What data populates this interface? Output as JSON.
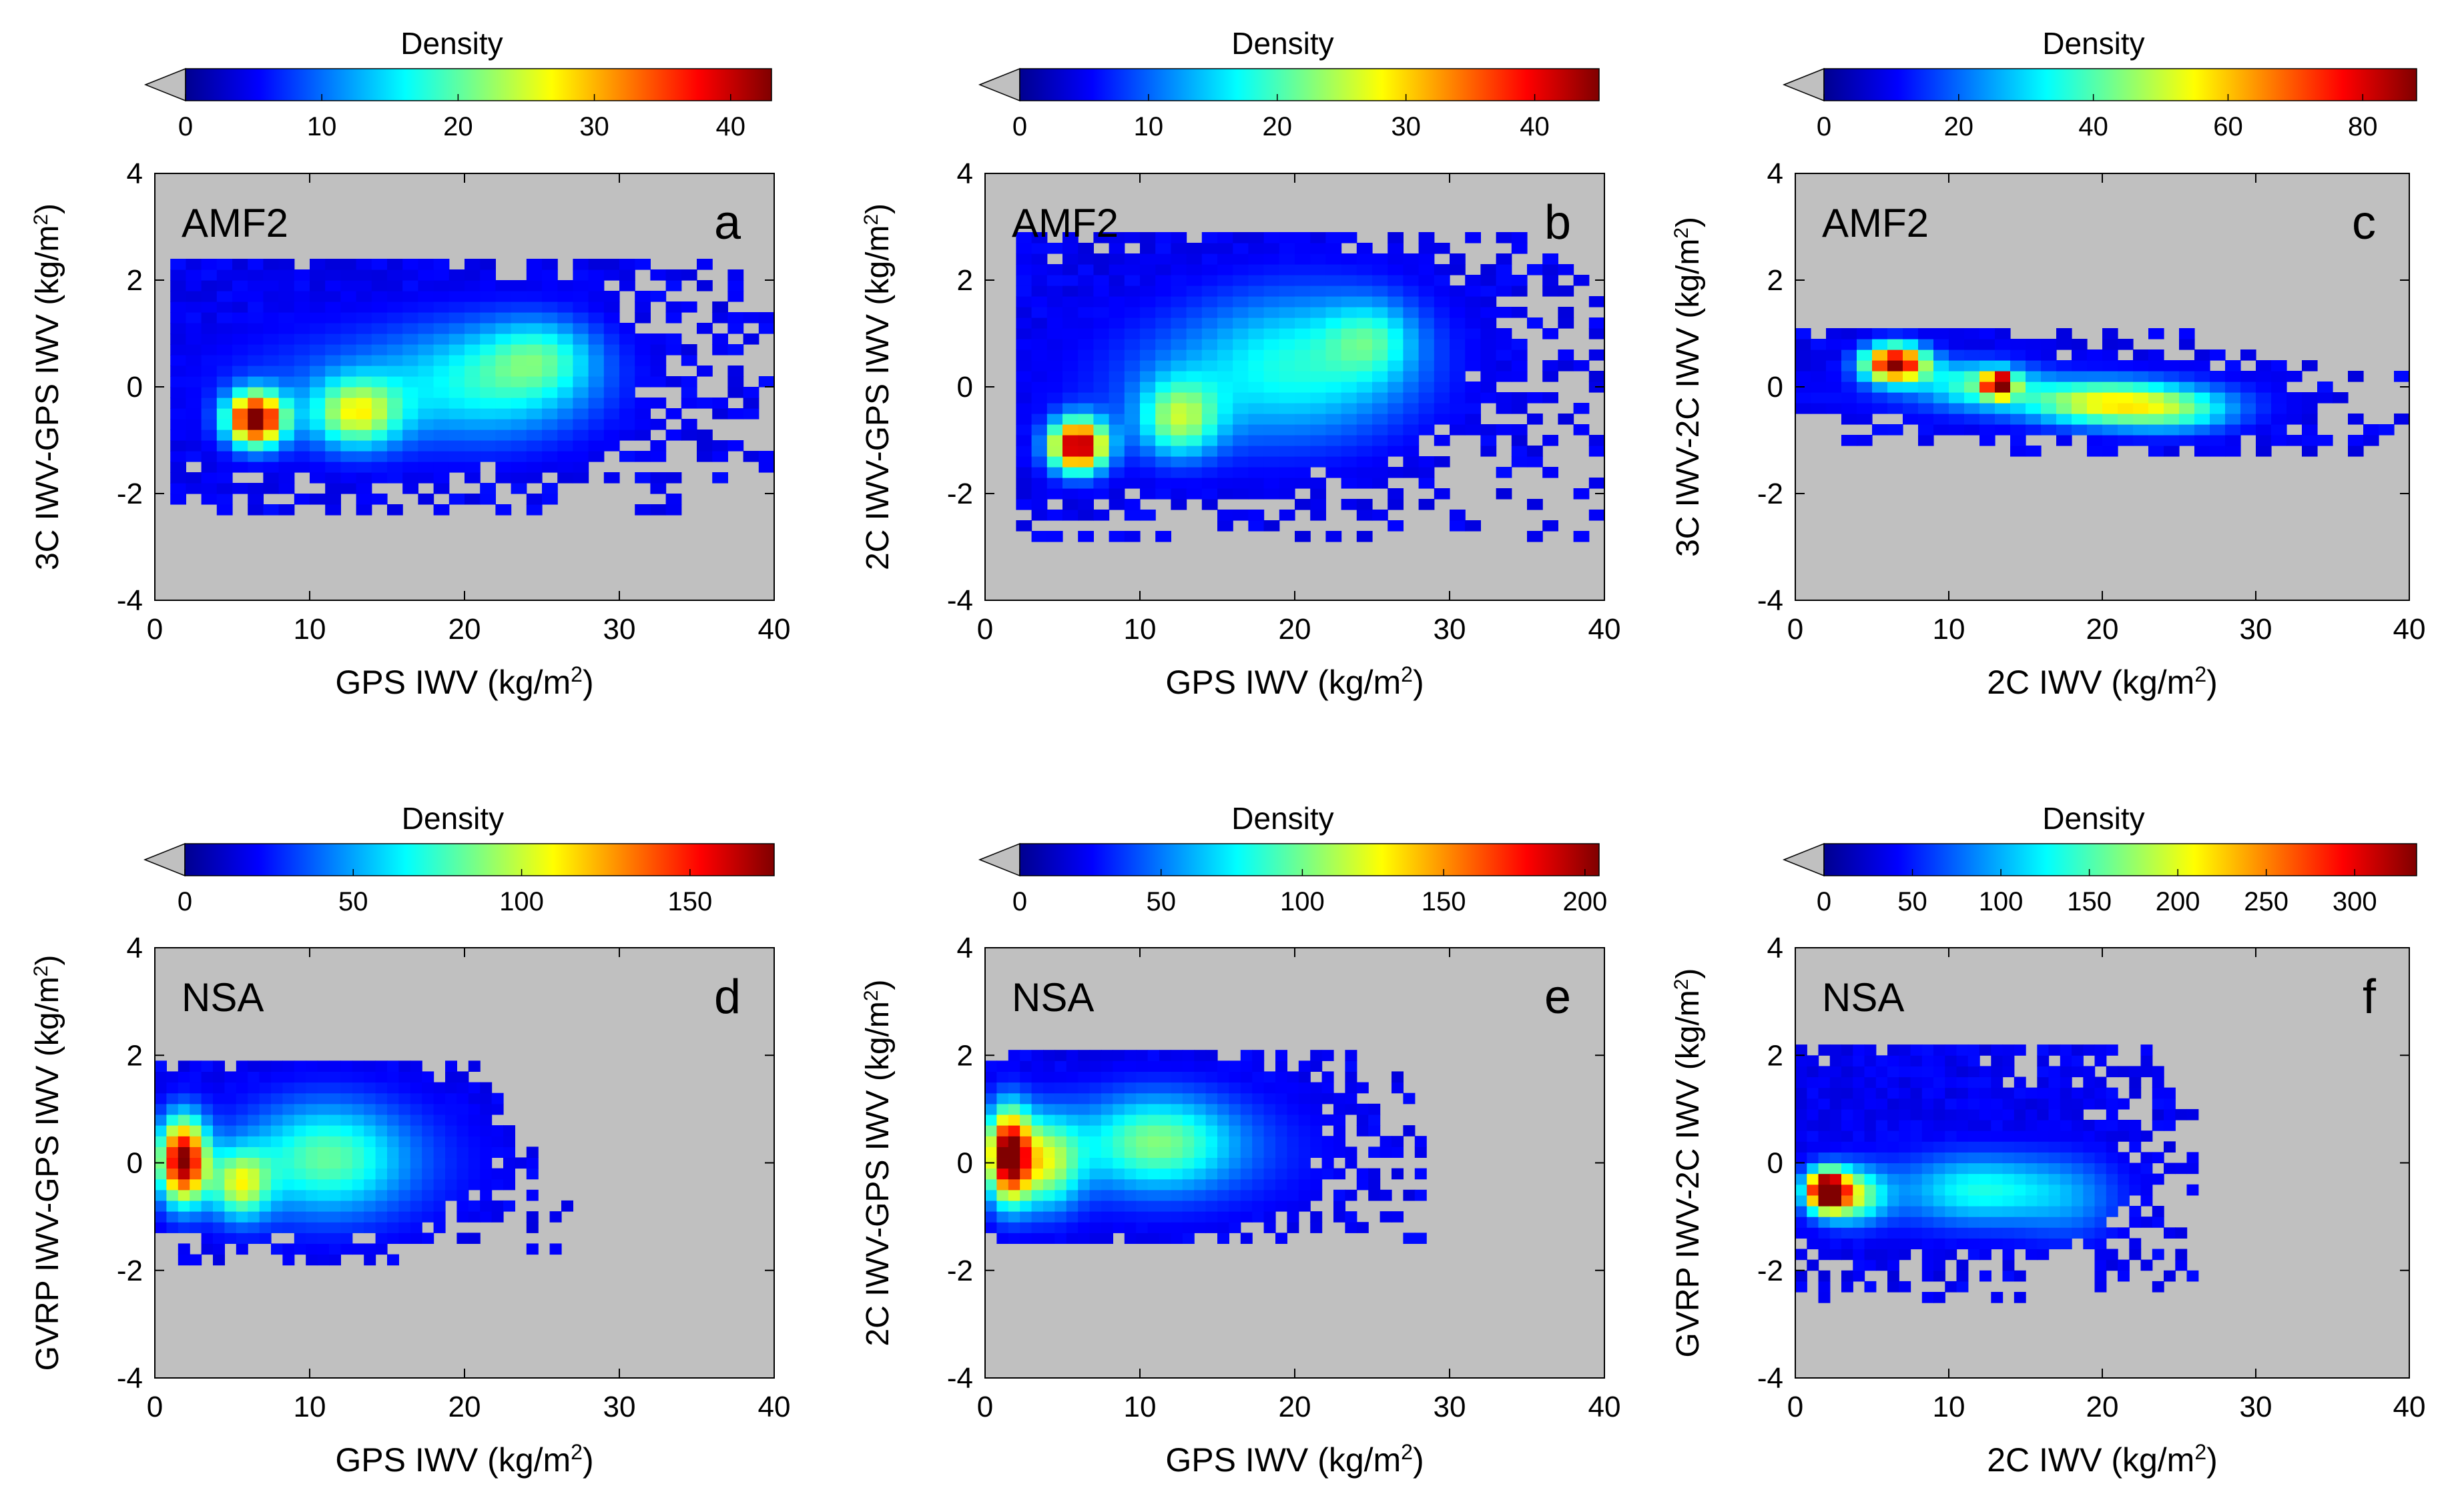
{
  "figure": {
    "panels": 6,
    "colormap": "jet",
    "background_color": "#c0c0c0",
    "colorbar_extension": "lower (gray triangle)"
  },
  "chart_data": [
    {
      "id": "a",
      "type": "heatmap",
      "site": "AMF2",
      "panel_letter": "a",
      "xlabel_main": "GPS IWV (kg/m",
      "ylabel_main": "3C IWV-GPS IWV (kg/m",
      "xlim": [
        0,
        40
      ],
      "ylim": [
        -4,
        4
      ],
      "xticks": [
        "0",
        "10",
        "20",
        "30",
        "40"
      ],
      "yticks": [
        "4",
        "2",
        "0",
        "-2",
        "-4"
      ],
      "colorbar": {
        "label": "Density",
        "min": 0,
        "max": 43,
        "ticks": [
          "0",
          "10",
          "20",
          "30",
          "40"
        ],
        "tick_values": [
          0,
          10,
          20,
          30,
          40
        ]
      },
      "bin_size": [
        1,
        0.2
      ],
      "grid": [
        30,
        10,
        20,
        0.6
      ],
      "blobs": [
        {
          "x": 6.5,
          "y": -0.6,
          "sx": 1.3,
          "sy": 0.35,
          "peak": 42
        },
        {
          "x": 13,
          "y": -0.5,
          "sx": 2.0,
          "sy": 0.45,
          "peak": 20
        },
        {
          "x": 22,
          "y": 0.1,
          "sx": 5.0,
          "sy": 0.8,
          "peak": 13
        },
        {
          "x": 25,
          "y": 0.6,
          "sx": 2.5,
          "sy": 0.5,
          "peak": 9
        },
        {
          "x": 12,
          "y": 0.0,
          "sx": 7,
          "sy": 0.9,
          "peak": 5
        }
      ],
      "hull": {
        "xmin": 1,
        "xmax": 40,
        "ymin": -2.4,
        "ymax": 2.3
      }
    },
    {
      "id": "b",
      "type": "heatmap",
      "site": "AMF2",
      "panel_letter": "b",
      "xlabel_main": "GPS IWV (kg/m",
      "ylabel_main": "2C IWV-GPS IWV (kg/m",
      "xlim": [
        0,
        40
      ],
      "ylim": [
        -4,
        4
      ],
      "xticks": [
        "0",
        "10",
        "20",
        "30",
        "40"
      ],
      "yticks": [
        "4",
        "2",
        "0",
        "-2",
        "-4"
      ],
      "colorbar": {
        "label": "Density",
        "min": 0,
        "max": 45,
        "ticks": [
          "0",
          "10",
          "20",
          "30",
          "40"
        ],
        "tick_values": [
          0,
          10,
          20,
          30,
          40
        ]
      },
      "bin_size": [
        1,
        0.2
      ],
      "grid": [
        31,
        11,
        21,
        0.6
      ],
      "blobs": [
        {
          "x": 6,
          "y": -1.1,
          "sx": 1.3,
          "sy": 0.35,
          "peak": 44
        },
        {
          "x": 12.5,
          "y": -0.6,
          "sx": 1.8,
          "sy": 0.5,
          "peak": 18
        },
        {
          "x": 21,
          "y": 0.5,
          "sx": 5.5,
          "sy": 1.0,
          "peak": 13
        },
        {
          "x": 25,
          "y": 0.9,
          "sx": 2.0,
          "sy": 0.5,
          "peak": 9
        },
        {
          "x": 14,
          "y": 0.0,
          "sx": 7,
          "sy": 1.0,
          "peak": 5
        }
      ],
      "hull": {
        "xmin": 2,
        "xmax": 40,
        "ymin": -2.9,
        "ymax": 2.8
      }
    },
    {
      "id": "c",
      "type": "heatmap",
      "site": "AMF2",
      "panel_letter": "c",
      "xlabel_main": "2C IWV (kg/m",
      "ylabel_main": "3C IWV-2C IWV (kg/m",
      "xlim": [
        0,
        40
      ],
      "ylim": [
        -4,
        4
      ],
      "xticks": [
        "0",
        "10",
        "20",
        "30",
        "40"
      ],
      "yticks": [
        "4",
        "2",
        "0",
        "-2",
        "-4"
      ],
      "colorbar": {
        "label": "Density",
        "min": 0,
        "max": 88,
        "ticks": [
          "0",
          "20",
          "40",
          "60",
          "80"
        ],
        "tick_values": [
          0,
          20,
          40,
          60,
          80
        ]
      },
      "bin_size": [
        1,
        0.2
      ],
      "grid": [
        32,
        12,
        22,
        0.45
      ],
      "blobs": [
        {
          "x": 6.5,
          "y": 0.45,
          "sx": 1.5,
          "sy": 0.25,
          "peak": 86
        },
        {
          "x": 13.3,
          "y": 0.05,
          "sx": 0.6,
          "sy": 0.15,
          "peak": 85
        },
        {
          "x": 12,
          "y": 0.1,
          "sx": 2.5,
          "sy": 0.3,
          "peak": 30
        },
        {
          "x": 20,
          "y": -0.3,
          "sx": 3.5,
          "sy": 0.3,
          "peak": 40
        },
        {
          "x": 25,
          "y": -0.45,
          "sx": 3,
          "sy": 0.3,
          "peak": 25
        },
        {
          "x": 16,
          "y": -0.2,
          "sx": 10,
          "sy": 0.35,
          "peak": 10
        }
      ],
      "hull": {
        "xmin": 0,
        "xmax": 40,
        "ymin": -1.3,
        "ymax": 1.0
      },
      "trend": {
        "slope": -0.035,
        "intercept": 0.55,
        "halfwidth": 0.75
      }
    },
    {
      "id": "d",
      "type": "heatmap",
      "site": "NSA",
      "panel_letter": "d",
      "xlabel_main": "GPS IWV (kg/m",
      "ylabel_main": "GVRP IWV-GPS IWV (kg/m",
      "xlim": [
        0,
        40
      ],
      "ylim": [
        -4,
        4
      ],
      "xticks": [
        "0",
        "10",
        "20",
        "30",
        "40"
      ],
      "yticks": [
        "4",
        "2",
        "0",
        "-2",
        "-4"
      ],
      "colorbar": {
        "label": "Density",
        "min": 0,
        "max": 175,
        "ticks": [
          "0",
          "50",
          "100",
          "150"
        ],
        "tick_values": [
          0,
          50,
          100,
          150
        ]
      },
      "bin_size": [
        0.75,
        0.2
      ],
      "grid": [
        18,
        9,
        14,
        0.5
      ],
      "blobs": [
        {
          "x": 1.8,
          "y": 0.05,
          "sx": 1.1,
          "sy": 0.55,
          "peak": 170
        },
        {
          "x": 5.5,
          "y": -0.4,
          "sx": 1.3,
          "sy": 0.45,
          "peak": 80
        },
        {
          "x": 11,
          "y": 0.1,
          "sx": 3.5,
          "sy": 0.7,
          "peak": 55
        },
        {
          "x": 12,
          "y": 0.0,
          "sx": 7,
          "sy": 1.0,
          "peak": 20
        }
      ],
      "hull": {
        "xmin": 0,
        "xmax": 27.5,
        "ymin": -1.9,
        "ymax": 1.8
      },
      "cutoff": [
        [
          0,
          1.8
        ],
        [
          21,
          1.8
        ],
        [
          27.5,
          -1.2
        ]
      ]
    },
    {
      "id": "e",
      "type": "heatmap",
      "site": "NSA",
      "panel_letter": "e",
      "xlabel_main": "GPS IWV (kg/m",
      "ylabel_main": "2C IWV-GPS IWV (kg/m",
      "xlim": [
        0,
        40
      ],
      "ylim": [
        -4,
        4
      ],
      "xticks": [
        "0",
        "10",
        "20",
        "30",
        "40"
      ],
      "yticks": [
        "4",
        "2",
        "0",
        "-2",
        "-4"
      ],
      "colorbar": {
        "label": "Density",
        "min": 0,
        "max": 205,
        "ticks": [
          "0",
          "50",
          "100",
          "150",
          "200"
        ],
        "tick_values": [
          0,
          50,
          100,
          150,
          200
        ]
      },
      "bin_size": [
        0.75,
        0.2
      ],
      "grid": [
        19,
        8,
        15,
        0.5
      ],
      "blobs": [
        {
          "x": 1.5,
          "y": 0.15,
          "sx": 1.0,
          "sy": 0.6,
          "peak": 200
        },
        {
          "x": 4,
          "y": 0.0,
          "sx": 1.5,
          "sy": 0.6,
          "peak": 90
        },
        {
          "x": 11,
          "y": 0.4,
          "sx": 3.5,
          "sy": 0.6,
          "peak": 70
        },
        {
          "x": 12,
          "y": 0.2,
          "sx": 7.5,
          "sy": 0.9,
          "peak": 25
        }
      ],
      "hull": {
        "xmin": 0,
        "xmax": 28,
        "ymin": -1.5,
        "ymax": 1.9
      }
    },
    {
      "id": "f",
      "type": "heatmap",
      "site": "NSA",
      "panel_letter": "f",
      "xlabel_main": "2C IWV (kg/m",
      "ylabel_main": "GVRP IWV-2C IWV (kg/m",
      "xlim": [
        0,
        40
      ],
      "ylim": [
        -4,
        4
      ],
      "xticks": [
        "0",
        "10",
        "20",
        "30",
        "40"
      ],
      "yticks": [
        "4",
        "2",
        "0",
        "-2",
        "-4"
      ],
      "colorbar": {
        "label": "Density",
        "min": 0,
        "max": 335,
        "ticks": [
          "0",
          "50",
          "100",
          "150",
          "200",
          "250",
          "300"
        ],
        "tick_values": [
          0,
          50,
          100,
          150,
          200,
          250,
          300
        ]
      },
      "bin_size": [
        0.75,
        0.2
      ],
      "grid": [
        21,
        7,
        17,
        0.45
      ],
      "blobs": [
        {
          "x": 2,
          "y": -0.5,
          "sx": 0.9,
          "sy": 0.25,
          "peak": 330
        },
        {
          "x": 3.5,
          "y": -0.6,
          "sx": 1.6,
          "sy": 0.35,
          "peak": 160
        },
        {
          "x": 12,
          "y": -0.5,
          "sx": 3.5,
          "sy": 0.45,
          "peak": 90
        },
        {
          "x": 18,
          "y": -0.7,
          "sx": 2.5,
          "sy": 0.6,
          "peak": 45
        },
        {
          "x": 10,
          "y": -0.5,
          "sx": 8,
          "sy": 0.7,
          "peak": 25
        }
      ],
      "hull": {
        "xmin": 0,
        "xmax": 26,
        "ymin": -2.6,
        "ymax": 2.0
      }
    }
  ]
}
